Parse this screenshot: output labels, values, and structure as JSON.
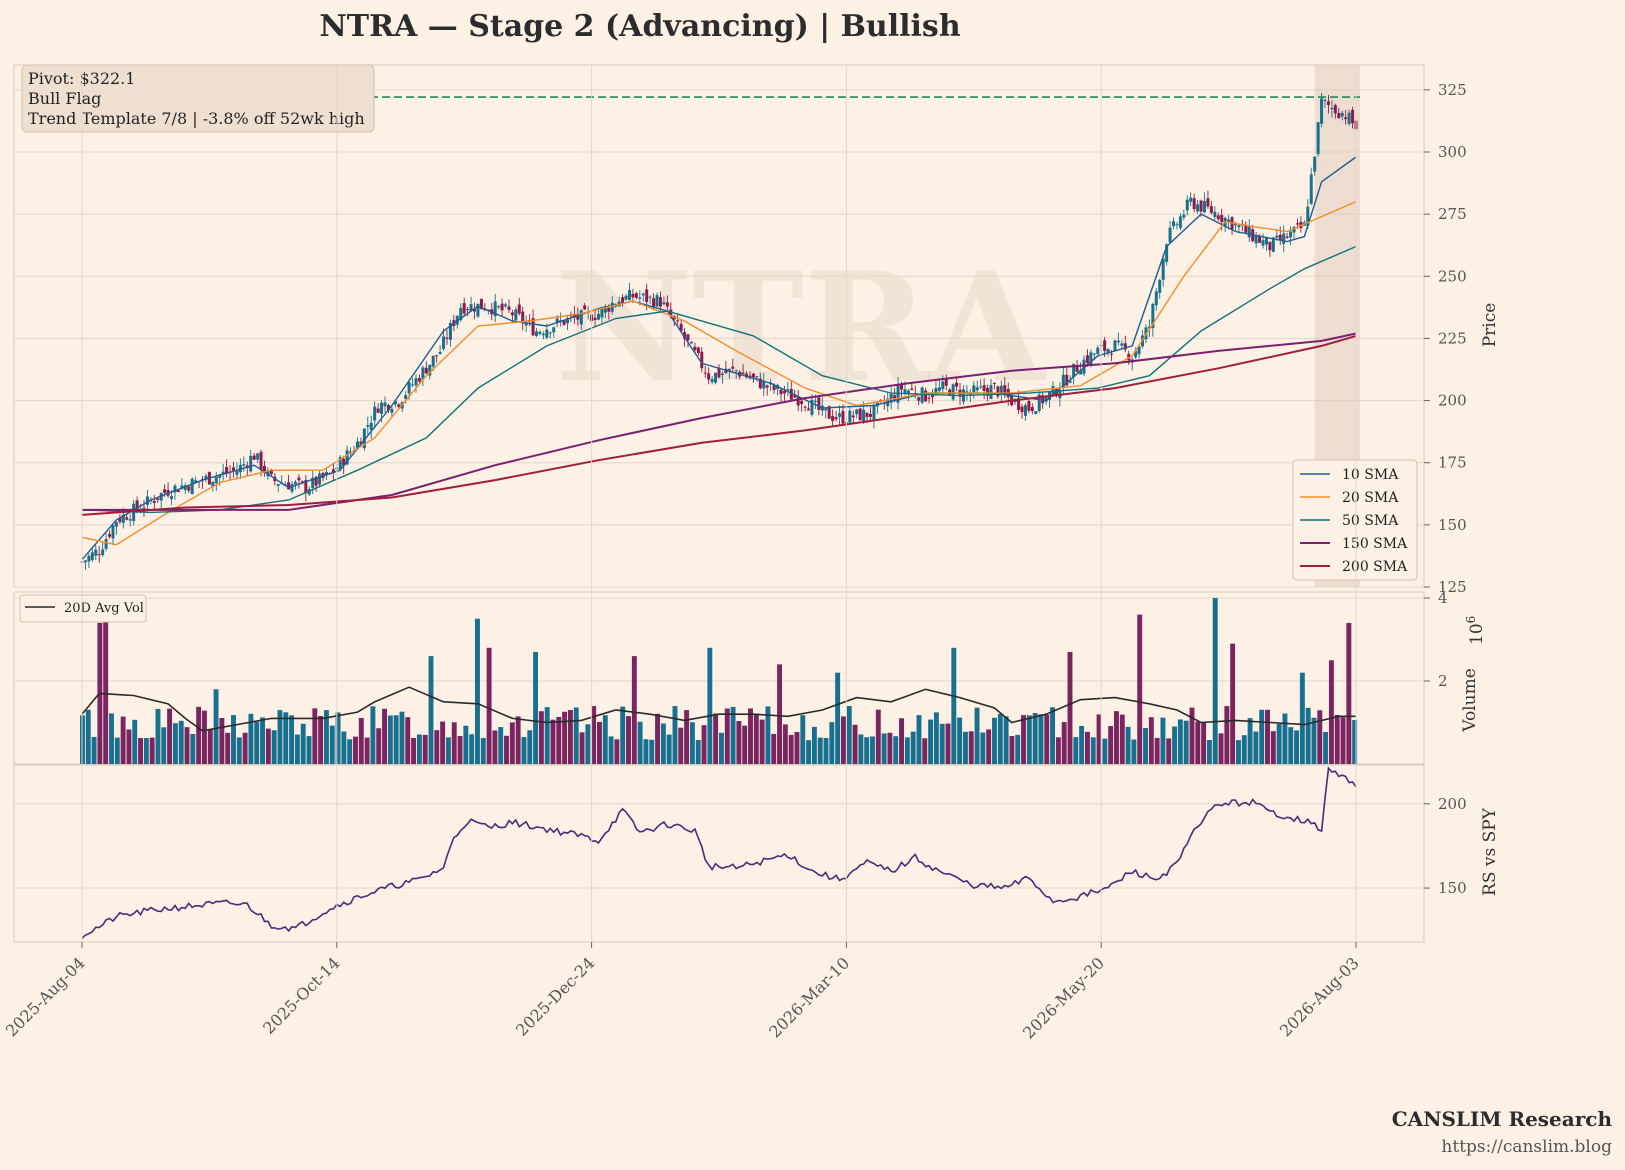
{
  "chart_data": {
    "type": "candlestick",
    "title": "NTRA  —  Stage 2 (Advancing)  |  Bullish",
    "watermark": "NTRA",
    "annotation": [
      "Pivot: $322.1",
      "Bull Flag",
      "Trend Template 7/8  |  -3.8% off 52wk high"
    ],
    "pivot": 322.1,
    "x_tick_labels": [
      "2025-Aug-04",
      "2025-Oct-14",
      "2025-Dec-24",
      "2026-Mar-10",
      "2026-May-20",
      "2026-Aug-03"
    ],
    "price_panel": {
      "ylabel": "Price",
      "ylim": [
        125,
        335
      ],
      "yticks": [
        125,
        150,
        175,
        200,
        225,
        250,
        275,
        300,
        325
      ],
      "close_path": [
        [
          0,
          135
        ],
        [
          5,
          140
        ],
        [
          10,
          152
        ],
        [
          18,
          158
        ],
        [
          25,
          164
        ],
        [
          35,
          168
        ],
        [
          45,
          172
        ],
        [
          50,
          178
        ],
        [
          55,
          168
        ],
        [
          65,
          165
        ],
        [
          72,
          170
        ],
        [
          80,
          183
        ],
        [
          86,
          198
        ],
        [
          92,
          200
        ],
        [
          98,
          210
        ],
        [
          104,
          220
        ],
        [
          110,
          238
        ],
        [
          118,
          238
        ],
        [
          125,
          235
        ],
        [
          132,
          228
        ],
        [
          140,
          232
        ],
        [
          150,
          235
        ],
        [
          155,
          240
        ],
        [
          160,
          242
        ],
        [
          168,
          240
        ],
        [
          175,
          225
        ],
        [
          182,
          210
        ],
        [
          190,
          212
        ],
        [
          200,
          205
        ],
        [
          210,
          200
        ],
        [
          215,
          195
        ],
        [
          220,
          193
        ],
        [
          230,
          195
        ],
        [
          238,
          205
        ],
        [
          245,
          202
        ],
        [
          250,
          205
        ],
        [
          258,
          203
        ],
        [
          265,
          205
        ],
        [
          270,
          200
        ],
        [
          275,
          197
        ],
        [
          282,
          203
        ],
        [
          290,
          215
        ],
        [
          295,
          220
        ],
        [
          300,
          222
        ],
        [
          305,
          218
        ],
        [
          310,
          230
        ],
        [
          315,
          265
        ],
        [
          322,
          280
        ],
        [
          330,
          275
        ],
        [
          338,
          268
        ],
        [
          345,
          262
        ],
        [
          350,
          266
        ],
        [
          355,
          270
        ],
        [
          360,
          320
        ],
        [
          367,
          315
        ],
        [
          370,
          310
        ]
      ],
      "sma_series": [
        {
          "name": "10 SMA",
          "color": "#1f5d91",
          "points": [
            [
              0,
              136
            ],
            [
              10,
              152
            ],
            [
              20,
              160
            ],
            [
              35,
              168
            ],
            [
              50,
              174
            ],
            [
              60,
              165
            ],
            [
              75,
              172
            ],
            [
              90,
              198
            ],
            [
              105,
              228
            ],
            [
              115,
              238
            ],
            [
              125,
              232
            ],
            [
              135,
              230
            ],
            [
              150,
              237
            ],
            [
              160,
              240
            ],
            [
              170,
              236
            ],
            [
              180,
              215
            ],
            [
              200,
              207
            ],
            [
              215,
              197
            ],
            [
              230,
              198
            ],
            [
              245,
              203
            ],
            [
              265,
              203
            ],
            [
              280,
              200
            ],
            [
              295,
              218
            ],
            [
              305,
              222
            ],
            [
              315,
              262
            ],
            [
              325,
              275
            ],
            [
              335,
              268
            ],
            [
              350,
              264
            ],
            [
              355,
              266
            ],
            [
              360,
              288
            ],
            [
              370,
              298
            ]
          ]
        },
        {
          "name": "20 SMA",
          "color": "#f28e2b",
          "points": [
            [
              0,
              145
            ],
            [
              10,
              142
            ],
            [
              25,
              155
            ],
            [
              40,
              167
            ],
            [
              55,
              172
            ],
            [
              70,
              172
            ],
            [
              85,
              185
            ],
            [
              100,
              210
            ],
            [
              115,
              230
            ],
            [
              130,
              232
            ],
            [
              145,
              235
            ],
            [
              160,
              240
            ],
            [
              175,
              232
            ],
            [
              190,
              220
            ],
            [
              210,
              205
            ],
            [
              225,
              198
            ],
            [
              245,
              203
            ],
            [
              270,
              203
            ],
            [
              290,
              206
            ],
            [
              305,
              218
            ],
            [
              320,
              250
            ],
            [
              332,
              272
            ],
            [
              340,
              270
            ],
            [
              350,
              268
            ],
            [
              360,
              274
            ],
            [
              370,
              280
            ]
          ]
        },
        {
          "name": "50 SMA",
          "color": "#12727a",
          "points": [
            [
              0,
              156
            ],
            [
              20,
              155
            ],
            [
              40,
              156
            ],
            [
              60,
              160
            ],
            [
              80,
              172
            ],
            [
              100,
              185
            ],
            [
              115,
              205
            ],
            [
              135,
              222
            ],
            [
              155,
              233
            ],
            [
              170,
              236
            ],
            [
              195,
              226
            ],
            [
              215,
              210
            ],
            [
              235,
              203
            ],
            [
              255,
              202
            ],
            [
              275,
              203
            ],
            [
              295,
              205
            ],
            [
              310,
              210
            ],
            [
              325,
              228
            ],
            [
              345,
              245
            ],
            [
              355,
              253
            ],
            [
              370,
              262
            ]
          ]
        },
        {
          "name": "150 SMA",
          "color": "#7b1f6e",
          "points": [
            [
              0,
              156
            ],
            [
              30,
              156
            ],
            [
              60,
              156
            ],
            [
              90,
              162
            ],
            [
              120,
              174
            ],
            [
              150,
              184
            ],
            [
              180,
              193
            ],
            [
              210,
              201
            ],
            [
              240,
              207
            ],
            [
              270,
              212
            ],
            [
              300,
              215
            ],
            [
              330,
              220
            ],
            [
              360,
              224
            ],
            [
              370,
              227
            ]
          ]
        },
        {
          "name": "200 SMA",
          "color": "#a01e3c",
          "points": [
            [
              0,
              154
            ],
            [
              30,
              157
            ],
            [
              60,
              158
            ],
            [
              90,
              161
            ],
            [
              120,
              168
            ],
            [
              150,
              176
            ],
            [
              180,
              183
            ],
            [
              210,
              188
            ],
            [
              240,
              194
            ],
            [
              270,
              200
            ],
            [
              300,
              205
            ],
            [
              330,
              213
            ],
            [
              360,
              222
            ],
            [
              370,
              226
            ]
          ]
        }
      ]
    },
    "volume_panel": {
      "ylabel": "Volume",
      "scale_label": "1e6",
      "ylim": [
        0,
        4
      ],
      "yticks": [
        2,
        4
      ],
      "legend": "20D Avg Vol",
      "bar_count": 220,
      "spikes": [
        [
          3,
          3.4
        ],
        [
          4,
          3.6
        ],
        [
          23,
          1.8
        ],
        [
          60,
          2.6
        ],
        [
          68,
          3.5
        ],
        [
          70,
          2.8
        ],
        [
          78,
          2.7
        ],
        [
          95,
          2.6
        ],
        [
          108,
          2.8
        ],
        [
          120,
          2.4
        ],
        [
          130,
          2.2
        ],
        [
          150,
          2.8
        ],
        [
          170,
          2.7
        ],
        [
          182,
          3.6
        ],
        [
          195,
          4.0
        ],
        [
          198,
          2.9
        ],
        [
          210,
          2.2
        ],
        [
          215,
          2.5
        ],
        [
          218,
          3.4
        ],
        [
          228,
          2.3
        ],
        [
          232,
          2.4
        ],
        [
          238,
          3.0
        ],
        [
          243,
          3.5
        ],
        [
          262,
          3.4
        ],
        [
          265,
          2.1
        ]
      ],
      "avg_path": [
        [
          0,
          1.2
        ],
        [
          5,
          1.7
        ],
        [
          15,
          1.65
        ],
        [
          25,
          1.45
        ],
        [
          30,
          1.1
        ],
        [
          35,
          0.8
        ],
        [
          45,
          0.95
        ],
        [
          55,
          1.1
        ],
        [
          70,
          1.1
        ],
        [
          80,
          1.25
        ],
        [
          85,
          1.5
        ],
        [
          95,
          1.85
        ],
        [
          105,
          1.5
        ],
        [
          115,
          1.45
        ],
        [
          125,
          1.1
        ],
        [
          135,
          1.0
        ],
        [
          145,
          1.05
        ],
        [
          155,
          1.3
        ],
        [
          165,
          1.2
        ],
        [
          175,
          1.05
        ],
        [
          185,
          1.2
        ],
        [
          195,
          1.2
        ],
        [
          205,
          1.15
        ],
        [
          215,
          1.3
        ],
        [
          225,
          1.6
        ],
        [
          235,
          1.5
        ],
        [
          245,
          1.8
        ],
        [
          255,
          1.6
        ],
        [
          265,
          1.35
        ],
        [
          270,
          1.0
        ],
        [
          280,
          1.2
        ],
        [
          290,
          1.55
        ],
        [
          300,
          1.6
        ],
        [
          310,
          1.45
        ],
        [
          318,
          1.3
        ],
        [
          325,
          1.0
        ],
        [
          335,
          1.05
        ],
        [
          345,
          1.0
        ],
        [
          355,
          0.95
        ],
        [
          365,
          1.15
        ],
        [
          370,
          1.15
        ]
      ]
    },
    "rs_panel": {
      "ylabel": "RS vs SPY",
      "ylim": [
        118,
        223
      ],
      "yticks": [
        150,
        200
      ],
      "color": "#4a2a7a",
      "points": [
        [
          0,
          122
        ],
        [
          5,
          127
        ],
        [
          10,
          133
        ],
        [
          18,
          136
        ],
        [
          25,
          138
        ],
        [
          35,
          140
        ],
        [
          42,
          141
        ],
        [
          48,
          140
        ],
        [
          55,
          128
        ],
        [
          62,
          126
        ],
        [
          72,
          138
        ],
        [
          82,
          146
        ],
        [
          90,
          151
        ],
        [
          98,
          155
        ],
        [
          105,
          162
        ],
        [
          108,
          180
        ],
        [
          112,
          190
        ],
        [
          118,
          186
        ],
        [
          125,
          189
        ],
        [
          135,
          185
        ],
        [
          145,
          181
        ],
        [
          150,
          178
        ],
        [
          157,
          196
        ],
        [
          162,
          183
        ],
        [
          170,
          188
        ],
        [
          178,
          184
        ],
        [
          182,
          163
        ],
        [
          190,
          162
        ],
        [
          198,
          166
        ],
        [
          205,
          170
        ],
        [
          212,
          160
        ],
        [
          220,
          155
        ],
        [
          228,
          165
        ],
        [
          235,
          160
        ],
        [
          242,
          168
        ],
        [
          248,
          161
        ],
        [
          258,
          152
        ],
        [
          268,
          150
        ],
        [
          275,
          156
        ],
        [
          282,
          142
        ],
        [
          290,
          145
        ],
        [
          298,
          150
        ],
        [
          305,
          160
        ],
        [
          312,
          155
        ],
        [
          318,
          164
        ],
        [
          322,
          180
        ],
        [
          325,
          190
        ],
        [
          330,
          200
        ],
        [
          340,
          201
        ],
        [
          345,
          195
        ],
        [
          355,
          190
        ],
        [
          360,
          185
        ],
        [
          362,
          220
        ],
        [
          367,
          215
        ],
        [
          370,
          212
        ]
      ]
    },
    "footer": {
      "brand": "CANSLIM Research",
      "url": "https://canslim.blog"
    },
    "colors": {
      "up": "#1a6f8a",
      "down": "#8c1a4a",
      "pivot_line": "#1f8a57",
      "volume_up": "#17708f",
      "volume_down": "#7a2460",
      "avg_vol": "#2a2a2a",
      "grid": "#e3d6cc",
      "panel_bg": "#fdf0e4"
    }
  }
}
